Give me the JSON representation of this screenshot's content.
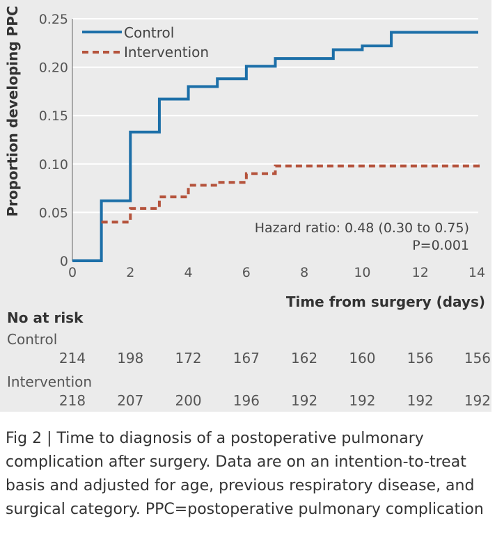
{
  "chart_data": {
    "type": "line",
    "subtype": "step",
    "ylabel": "Proportion developing PPC",
    "xlabel": "Time from surgery (days)",
    "xlim": [
      0,
      14
    ],
    "ylim": [
      0,
      0.25
    ],
    "x_ticks": [
      "0",
      "2",
      "4",
      "6",
      "8",
      "10",
      "12",
      "14"
    ],
    "y_ticks": [
      "0",
      "0.05",
      "0.10",
      "0.15",
      "0.20",
      "0.25"
    ],
    "legend": {
      "placement": "top-left",
      "entries": [
        "Control",
        "Intervention"
      ]
    },
    "series": [
      {
        "name": "Control",
        "color": "#1c6fa8",
        "style": "solid",
        "x": [
          0,
          1,
          2,
          3,
          4,
          5,
          6,
          7,
          9,
          10,
          11,
          14
        ],
        "y": [
          0,
          0.062,
          0.133,
          0.167,
          0.18,
          0.188,
          0.201,
          0.209,
          0.218,
          0.222,
          0.236,
          0.236
        ]
      },
      {
        "name": "Intervention",
        "color": "#b5533c",
        "style": "dashed",
        "x": [
          1,
          2,
          3,
          4,
          5,
          6,
          7,
          14
        ],
        "y": [
          0.04,
          0.054,
          0.066,
          0.078,
          0.081,
          0.09,
          0.098,
          0.1
        ]
      }
    ],
    "annotation": {
      "hr_text": "Hazard ratio: 0.48 (0.30 to 0.75)",
      "p_text": "P=0.001"
    },
    "at_risk": {
      "title": "No at risk",
      "groups": [
        {
          "name": "Control",
          "values": [
            "214",
            "198",
            "172",
            "167",
            "162",
            "160",
            "156",
            "156"
          ]
        },
        {
          "name": "Intervention",
          "values": [
            "218",
            "207",
            "200",
            "196",
            "192",
            "192",
            "192",
            "192"
          ]
        }
      ]
    }
  },
  "caption": {
    "label": "Fig 2",
    "separator": "|",
    "text": "Time to diagnosis of a postoperative pulmonary complication after surgery. Data are on an intention-to-treat basis and adjusted for age, previous respiratory disease, and surgical category. PPC=postoperative pulmonary complication"
  }
}
